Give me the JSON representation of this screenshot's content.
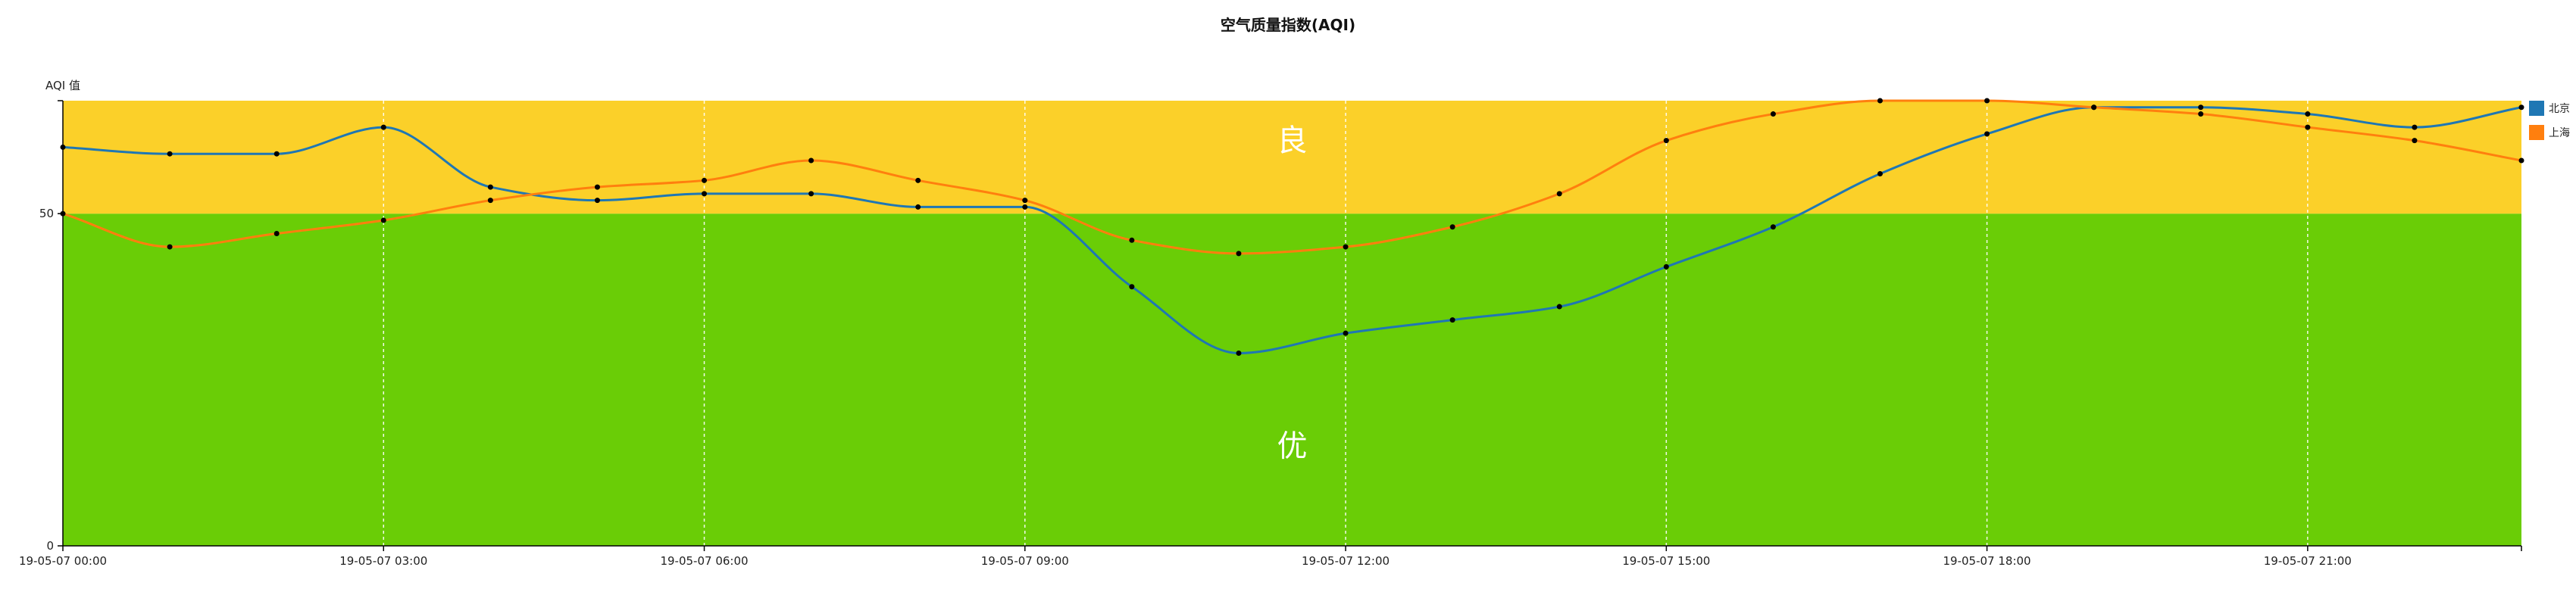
{
  "chart_data": {
    "type": "line",
    "title": "空气质量指数(AQI)",
    "ylabel": "AQI 值",
    "xlabel": "",
    "ylim": [
      0,
      67
    ],
    "yticks": [
      0,
      50
    ],
    "x": [
      "00:00",
      "01:00",
      "02:00",
      "03:00",
      "04:00",
      "05:00",
      "06:00",
      "07:00",
      "08:00",
      "09:00",
      "10:00",
      "11:00",
      "12:00",
      "13:00",
      "14:00",
      "15:00",
      "16:00",
      "17:00",
      "18:00",
      "19:00",
      "20:00",
      "21:00",
      "22:00",
      "23:00"
    ],
    "xtick_labels": [
      "19-05-07 00:00",
      "19-05-07 03:00",
      "19-05-07 06:00",
      "19-05-07 09:00",
      "19-05-07 12:00",
      "19-05-07 15:00",
      "19-05-07 18:00",
      "19-05-07 21:00"
    ],
    "xtick_indices": [
      0,
      3,
      6,
      9,
      12,
      15,
      18,
      21
    ],
    "bands": [
      {
        "label": "优",
        "from": 0,
        "to": 50,
        "color": "#6acd06"
      },
      {
        "label": "良",
        "from": 50,
        "to": 67,
        "color": "#fbd029"
      }
    ],
    "series": [
      {
        "name": "北京",
        "color": "#1f77b4",
        "values": [
          60,
          59,
          59,
          63,
          54,
          52,
          53,
          53,
          51,
          51,
          39,
          29,
          32,
          34,
          36,
          42,
          48,
          56,
          62,
          66,
          66,
          65,
          63,
          66
        ]
      },
      {
        "name": "上海",
        "color": "#ff7f0e",
        "values": [
          50,
          45,
          47,
          49,
          52,
          54,
          55,
          58,
          55,
          52,
          46,
          44,
          45,
          48,
          53,
          61,
          65,
          67,
          67,
          66,
          65,
          63,
          61,
          58
        ]
      }
    ],
    "legend_position": "right",
    "grid": "vertical-dashed"
  }
}
